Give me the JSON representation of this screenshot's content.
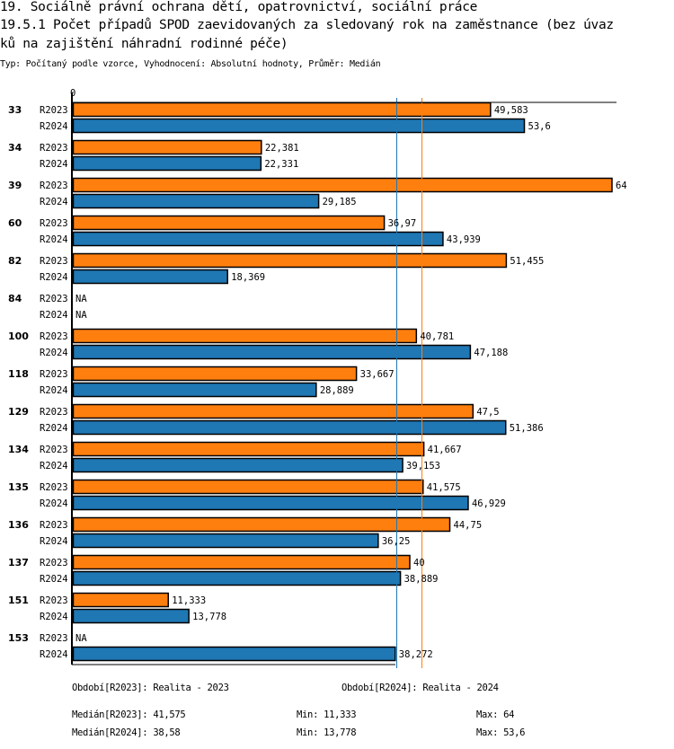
{
  "header": {
    "title_line1": "19. Sociálně právní ochrana dětí, opatrovnictví, sociální práce",
    "title_line2": "19.5.1 Počet případů SPOD zaevidovaných za sledovaný rok na zaměstnance (bez úvaz",
    "title_line3": "ků na zajištění náhradní rodinné péče)",
    "subtitle": "Typ: Počítaný podle vzorce, Vyhodnocení: Absolutní hodnoty, Průměr: Medián"
  },
  "chart_data": {
    "type": "bar",
    "orientation": "horizontal",
    "title": "19.5.1 Počet případů SPOD zaevidovaných za sledovaný rok na zaměstnance (bez úvazků na zajištění náhradní rodinné péče)",
    "xlabel": "",
    "ylabel": "",
    "xlim": [
      0,
      64
    ],
    "x_tick_labels": [
      "0"
    ],
    "categories": [
      "33",
      "34",
      "39",
      "60",
      "82",
      "84",
      "100",
      "118",
      "129",
      "134",
      "135",
      "136",
      "137",
      "151",
      "153"
    ],
    "series": [
      {
        "name": "R2023",
        "color": "#ff7f0e",
        "values": [
          49.583,
          22.381,
          64,
          36.97,
          51.455,
          null,
          40.781,
          33.667,
          47.5,
          41.667,
          41.575,
          44.75,
          40,
          11.333,
          null
        ],
        "labels": [
          "49,583",
          "22,381",
          "64",
          "36,97",
          "51,455",
          "NA",
          "40,781",
          "33,667",
          "47,5",
          "41,667",
          "41,575",
          "44,75",
          "40",
          "11,333",
          "NA"
        ]
      },
      {
        "name": "R2024",
        "color": "#1f77b4",
        "values": [
          53.6,
          22.331,
          29.185,
          43.939,
          18.369,
          null,
          47.188,
          28.889,
          51.386,
          39.153,
          46.929,
          36.25,
          38.889,
          13.778,
          38.272
        ],
        "labels": [
          "53,6",
          "22,331",
          "29,185",
          "43,939",
          "18,369",
          "NA",
          "47,188",
          "28,889",
          "51,386",
          "39,153",
          "46,929",
          "36,25",
          "38,889",
          "13,778",
          "38,272"
        ]
      }
    ],
    "reference_lines": [
      {
        "name": "Medián R2024",
        "value": 38.58,
        "color": "#1f77b4"
      },
      {
        "name": "Medián R2023",
        "value": 41.575,
        "color": "#ff7f0e"
      }
    ],
    "grid": false,
    "legend": "bottom"
  },
  "footer": {
    "period_2023": "Období[R2023]: Realita - 2023",
    "period_2024": "Období[R2024]: Realita - 2024",
    "median_2023": "Medián[R2023]: 41,575",
    "min_2023": "Min: 11,333",
    "max_2023": "Max: 64",
    "median_2024": "Medián[R2024]: 38,58",
    "min_2024": "Min: 13,778",
    "max_2024": "Max: 53,6"
  }
}
